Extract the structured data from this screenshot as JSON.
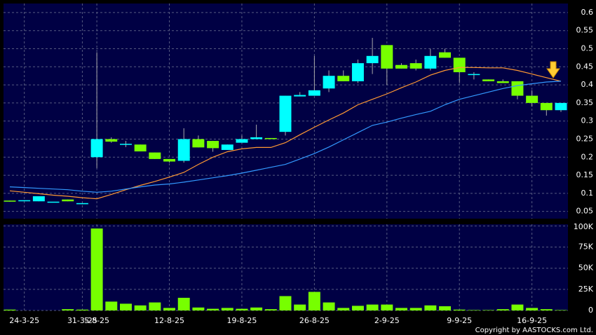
{
  "chart_data": {
    "type": "candlestick",
    "categories": [
      null,
      "24-3-25",
      null,
      null,
      null,
      "31-3-25",
      "5-8-25",
      null,
      null,
      null,
      null,
      "12-8-25",
      null,
      null,
      null,
      null,
      "19-8-25",
      null,
      null,
      null,
      null,
      "26-8-25",
      null,
      null,
      null,
      null,
      "2-9-25",
      null,
      null,
      null,
      null,
      "9-9-25",
      null,
      null,
      null,
      null,
      "16-9-25",
      null,
      null
    ],
    "open": [
      0.08,
      0.08,
      0.078,
      0.077,
      0.083,
      0.07,
      0.2,
      0.25,
      0.237,
      0.235,
      0.213,
      0.195,
      0.19,
      0.25,
      0.245,
      0.22,
      0.24,
      0.25,
      0.253,
      0.27,
      0.368,
      0.37,
      0.39,
      0.425,
      0.41,
      0.46,
      0.51,
      0.455,
      0.46,
      0.445,
      0.49,
      0.475,
      0.43,
      0.415,
      0.41,
      0.41,
      0.37,
      0.35,
      0.33
    ],
    "high": [
      0.08,
      0.081,
      0.092,
      0.077,
      0.083,
      0.073,
      0.49,
      0.255,
      0.245,
      0.235,
      0.213,
      0.195,
      0.28,
      0.26,
      0.245,
      0.235,
      0.26,
      0.29,
      0.253,
      0.37,
      0.38,
      0.48,
      0.44,
      0.44,
      0.47,
      0.53,
      0.51,
      0.46,
      0.47,
      0.5,
      0.5,
      0.475,
      0.435,
      0.415,
      0.415,
      0.41,
      0.385,
      0.35,
      0.35
    ],
    "low": [
      0.077,
      0.08,
      0.078,
      0.077,
      0.078,
      0.07,
      0.17,
      0.24,
      0.228,
      0.216,
      0.195,
      0.185,
      0.185,
      0.227,
      0.215,
      0.22,
      0.24,
      0.25,
      0.25,
      0.26,
      0.368,
      0.37,
      0.38,
      0.41,
      0.405,
      0.43,
      0.4,
      0.445,
      0.44,
      0.44,
      0.475,
      0.405,
      0.415,
      0.41,
      0.405,
      0.36,
      0.34,
      0.315,
      0.325
    ],
    "close": [
      0.077,
      0.081,
      0.092,
      0.077,
      0.078,
      0.073,
      0.25,
      0.243,
      0.237,
      0.216,
      0.195,
      0.188,
      0.25,
      0.227,
      0.225,
      0.235,
      0.25,
      0.255,
      0.25,
      0.37,
      0.372,
      0.385,
      0.425,
      0.41,
      0.46,
      0.48,
      0.445,
      0.445,
      0.445,
      0.48,
      0.475,
      0.435,
      0.43,
      0.41,
      0.405,
      0.37,
      0.35,
      0.33,
      0.35
    ],
    "up_color": "#00ffff",
    "down_color": "#77ff00",
    "ylim": [
      0.03,
      0.625
    ],
    "yticks": [
      0.05,
      0.1,
      0.15,
      0.2,
      0.25,
      0.3,
      0.35,
      0.4,
      0.45,
      0.5,
      0.55,
      0.6
    ],
    "grid": true,
    "series": [
      {
        "color": "#ff9933",
        "values": [
          0.107,
          0.103,
          0.099,
          0.095,
          0.092,
          0.088,
          0.085,
          0.097,
          0.11,
          0.122,
          0.133,
          0.145,
          0.158,
          0.18,
          0.2,
          0.215,
          0.223,
          0.227,
          0.227,
          0.24,
          0.262,
          0.283,
          0.303,
          0.322,
          0.345,
          0.36,
          0.375,
          0.392,
          0.408,
          0.427,
          0.44,
          0.448,
          0.448,
          0.447,
          0.447,
          0.44,
          0.43,
          0.42,
          0.41
        ]
      },
      {
        "color": "#3399ff",
        "values": [
          0.118,
          0.116,
          0.114,
          0.112,
          0.11,
          0.106,
          0.103,
          0.106,
          0.112,
          0.118,
          0.123,
          0.126,
          0.131,
          0.137,
          0.143,
          0.149,
          0.156,
          0.164,
          0.172,
          0.18,
          0.195,
          0.21,
          0.228,
          0.248,
          0.268,
          0.288,
          0.297,
          0.308,
          0.318,
          0.327,
          0.345,
          0.36,
          0.37,
          0.38,
          0.39,
          0.398,
          0.403,
          0.408,
          0.41
        ]
      }
    ],
    "volume": {
      "color": "#77ff00",
      "values": [
        1000,
        0,
        0,
        0,
        1500,
        1000,
        97000,
        10500,
        8000,
        6000,
        9500,
        3000,
        15000,
        3500,
        2000,
        3000,
        2000,
        3500,
        1500,
        17000,
        7000,
        22000,
        9500,
        3000,
        5500,
        7000,
        7000,
        3000,
        3000,
        6000,
        5000,
        1000,
        500,
        500,
        1500,
        7000,
        3000,
        1500,
        500
      ],
      "ylim": [
        0,
        102000
      ],
      "yticks": [
        0,
        {
          "value": 25000,
          "label": "25K"
        },
        {
          "value": 50000,
          "label": "50K"
        },
        {
          "value": 75000,
          "label": "75K"
        },
        {
          "value": 100000,
          "label": "100K"
        }
      ]
    },
    "copyright": "Copyright by AASTOCKS.com Ltd."
  }
}
